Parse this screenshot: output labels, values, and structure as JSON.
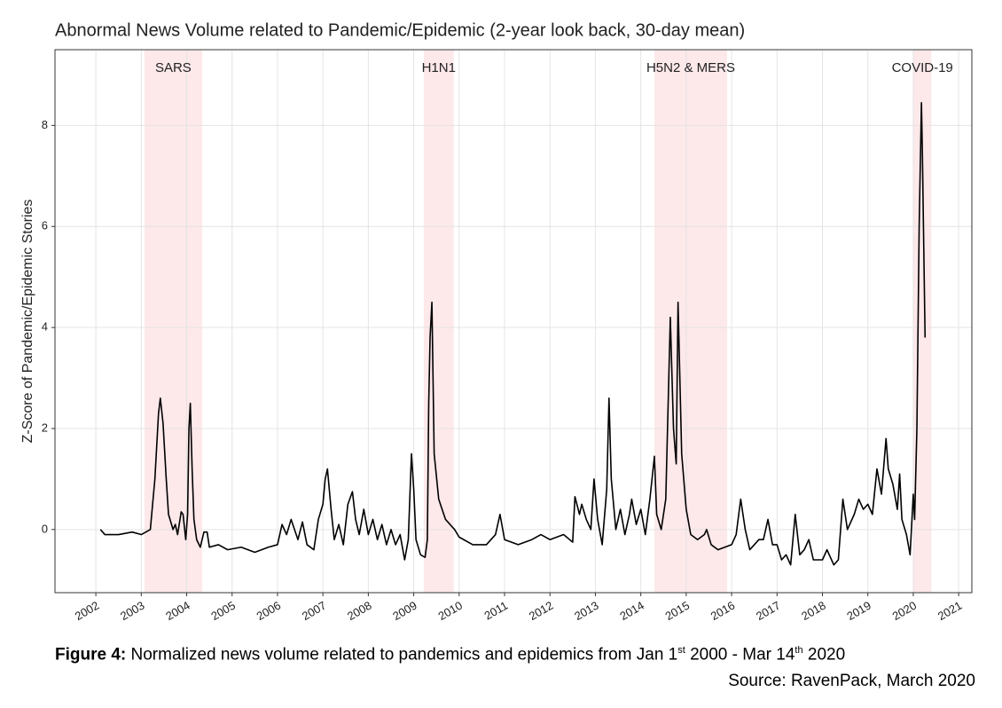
{
  "chart_data": {
    "type": "line",
    "title": "Abnormal News Volume related to Pandemic/Epidemic (2-year look back, 30-day mean)",
    "y_label": "Z-Score of Pandemic/Epidemic Stories",
    "color": "#000000",
    "grid": true,
    "xlim": [
      2001.1,
      2021.29
    ],
    "ylim": [
      -1.25,
      9.5
    ],
    "xticks": [
      2002,
      2003,
      2004,
      2005,
      2006,
      2007,
      2008,
      2009,
      2010,
      2011,
      2012,
      2013,
      2014,
      2015,
      2016,
      2017,
      2018,
      2019,
      2020,
      2021
    ],
    "yticks": [
      0,
      2,
      4,
      6,
      8
    ],
    "bands": [
      {
        "label": "SARS",
        "start": 2003.07,
        "end": 2004.34,
        "color": "#fde8ea"
      },
      {
        "label": "H1N1",
        "start": 2009.22,
        "end": 2009.88,
        "color": "#fde8ea"
      },
      {
        "label": "H5N2 & MERS",
        "start": 2014.3,
        "end": 2015.9,
        "color": "#fde8ea"
      },
      {
        "label": "COVID-19",
        "start": 2020.0,
        "end": 2020.4,
        "color": "#fde8ea"
      }
    ],
    "x": [
      2002.1,
      2002.2,
      2002.5,
      2002.8,
      2003.0,
      2003.2,
      2003.3,
      2003.38,
      2003.42,
      2003.48,
      2003.55,
      2003.6,
      2003.7,
      2003.75,
      2003.8,
      2003.88,
      2003.92,
      2003.98,
      2004.02,
      2004.05,
      2004.08,
      2004.12,
      2004.16,
      2004.22,
      2004.3,
      2004.38,
      2004.45,
      2004.5,
      2004.7,
      2004.9,
      2005.2,
      2005.5,
      2005.8,
      2006.0,
      2006.1,
      2006.2,
      2006.3,
      2006.45,
      2006.55,
      2006.65,
      2006.8,
      2006.9,
      2007.0,
      2007.05,
      2007.1,
      2007.18,
      2007.25,
      2007.35,
      2007.45,
      2007.55,
      2007.65,
      2007.72,
      2007.8,
      2007.9,
      2008.0,
      2008.1,
      2008.2,
      2008.3,
      2008.4,
      2008.5,
      2008.6,
      2008.7,
      2008.8,
      2008.88,
      2008.95,
      2009.0,
      2009.05,
      2009.15,
      2009.25,
      2009.3,
      2009.33,
      2009.36,
      2009.4,
      2009.45,
      2009.55,
      2009.7,
      2009.9,
      2010.0,
      2010.3,
      2010.6,
      2010.8,
      2010.9,
      2011.0,
      2011.3,
      2011.6,
      2011.8,
      2012.0,
      2012.3,
      2012.5,
      2012.55,
      2012.65,
      2012.7,
      2012.8,
      2012.9,
      2012.97,
      2013.05,
      2013.15,
      2013.25,
      2013.3,
      2013.35,
      2013.45,
      2013.55,
      2013.65,
      2013.75,
      2013.8,
      2013.9,
      2014.0,
      2014.1,
      2014.2,
      2014.3,
      2014.35,
      2014.45,
      2014.55,
      2014.65,
      2014.72,
      2014.78,
      2014.82,
      2014.9,
      2015.0,
      2015.1,
      2015.25,
      2015.4,
      2015.45,
      2015.55,
      2015.7,
      2015.85,
      2016.0,
      2016.1,
      2016.2,
      2016.3,
      2016.4,
      2016.5,
      2016.6,
      2016.7,
      2016.8,
      2016.9,
      2017.0,
      2017.1,
      2017.2,
      2017.3,
      2017.4,
      2017.5,
      2017.6,
      2017.7,
      2017.8,
      2018.0,
      2018.1,
      2018.25,
      2018.35,
      2018.45,
      2018.55,
      2018.7,
      2018.8,
      2018.9,
      2019.0,
      2019.1,
      2019.2,
      2019.3,
      2019.4,
      2019.45,
      2019.55,
      2019.65,
      2019.7,
      2019.75,
      2019.85,
      2019.93,
      2020.0,
      2020.03,
      2020.08,
      2020.13,
      2020.18,
      2020.2,
      2020.26
    ],
    "values": [
      0,
      -0.1,
      -0.1,
      -0.05,
      -0.1,
      0.0,
      1.0,
      2.3,
      2.6,
      2.1,
      1.0,
      0.3,
      0.0,
      0.1,
      -0.1,
      0.35,
      0.3,
      -0.2,
      0.3,
      2.0,
      2.5,
      1.2,
      0.2,
      -0.2,
      -0.35,
      -0.05,
      -0.05,
      -0.35,
      -0.3,
      -0.4,
      -0.35,
      -0.45,
      -0.35,
      -0.3,
      0.1,
      -0.1,
      0.2,
      -0.2,
      0.15,
      -0.3,
      -0.4,
      0.2,
      0.5,
      1.0,
      1.2,
      0.4,
      -0.2,
      0.1,
      -0.3,
      0.5,
      0.75,
      0.2,
      -0.1,
      0.4,
      -0.1,
      0.2,
      -0.2,
      0.1,
      -0.3,
      0.0,
      -0.3,
      -0.1,
      -0.6,
      -0.2,
      1.5,
      0.8,
      -0.2,
      -0.5,
      -0.55,
      -0.2,
      2.5,
      3.8,
      4.5,
      1.5,
      0.6,
      0.2,
      0.0,
      -0.15,
      -0.3,
      -0.3,
      -0.1,
      0.3,
      -0.2,
      -0.3,
      -0.2,
      -0.1,
      -0.2,
      -0.1,
      -0.25,
      0.65,
      0.3,
      0.5,
      0.2,
      0.0,
      1.0,
      0.2,
      -0.3,
      0.8,
      2.6,
      1.0,
      0.0,
      0.4,
      -0.1,
      0.3,
      0.6,
      0.1,
      0.4,
      -0.1,
      0.6,
      1.45,
      0.3,
      0.0,
      0.6,
      4.2,
      2.0,
      1.3,
      4.5,
      1.5,
      0.4,
      -0.1,
      -0.2,
      -0.1,
      0.0,
      -0.3,
      -0.4,
      -0.35,
      -0.3,
      -0.1,
      0.6,
      0.0,
      -0.4,
      -0.3,
      -0.2,
      -0.2,
      0.2,
      -0.3,
      -0.3,
      -0.6,
      -0.5,
      -0.7,
      0.3,
      -0.5,
      -0.4,
      -0.2,
      -0.6,
      -0.6,
      -0.4,
      -0.7,
      -0.6,
      0.6,
      0.0,
      0.3,
      0.6,
      0.4,
      0.5,
      0.3,
      1.2,
      0.7,
      1.8,
      1.2,
      0.9,
      0.4,
      1.1,
      0.2,
      -0.1,
      -0.5,
      0.7,
      0.2,
      2.0,
      6.0,
      8.45,
      7.5,
      3.8
    ],
    "caption": {
      "label": "Figure 4:",
      "parts": [
        " Normalized news volume related to pandemics and epidemics from Jan 1",
        "st",
        " 2000 - Mar 14",
        "th",
        " 2020"
      ]
    },
    "source": "Source: RavenPack, March 2020"
  }
}
